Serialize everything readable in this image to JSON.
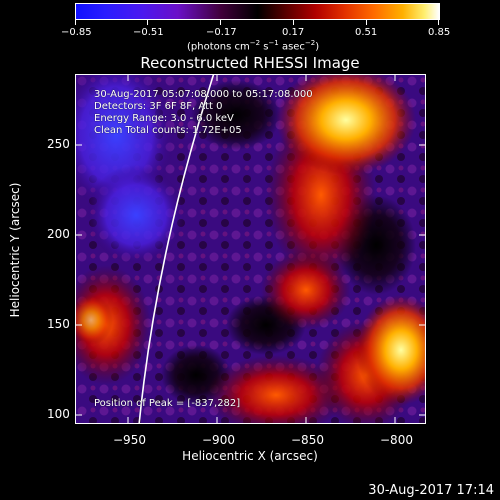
{
  "colorbar": {
    "tick_labels": [
      "−0.85",
      "−0.51",
      "−0.17",
      "0.17",
      "0.51",
      "0.85"
    ],
    "unit_main": "(photons cm",
    "unit_exp1": "−2",
    "unit_s": " s",
    "unit_exp2": "−1",
    "unit_asec": " asec",
    "unit_exp3": "−2",
    "unit_close": ")"
  },
  "title": "Reconstructed RHESSI Image",
  "info": {
    "line1": "30-Aug-2017 05:07:08.000 to 05:17:08.000",
    "line2": "Detectors: 3F 6F 8F, Att 0",
    "line3": "Energy Range: 3.0 - 6.0 keV",
    "line4": "Clean     Total counts: 1.72E+05"
  },
  "peak": "Position of Peak = [-837,282]",
  "axes": {
    "xlabel": "Heliocentric X (arcsec)",
    "ylabel": "Heliocentric Y (arcsec)",
    "xticks": [
      "−950",
      "−900",
      "−850",
      "−800"
    ],
    "yticks": [
      "250",
      "200",
      "150",
      "100"
    ]
  },
  "timestamp": "30-Aug-2017 17:14",
  "colors": {
    "background": "#000000",
    "map_base": "#300070",
    "text": "#ffffff"
  }
}
